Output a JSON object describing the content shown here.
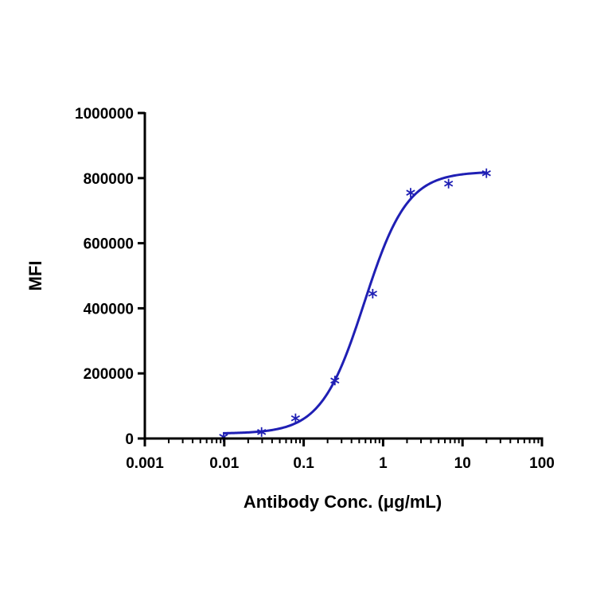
{
  "chart_data": {
    "type": "scatter",
    "title": "",
    "xlabel": "Antibody Conc. (μg/mL)",
    "ylabel": "MFI",
    "x_scale": "log",
    "xlim": [
      0.001,
      100
    ],
    "ylim": [
      0,
      1000000
    ],
    "x_ticks": [
      {
        "value": 0.001,
        "label": "0.001"
      },
      {
        "value": 0.01,
        "label": "0.01"
      },
      {
        "value": 0.1,
        "label": "0.1"
      },
      {
        "value": 1,
        "label": "1"
      },
      {
        "value": 10,
        "label": "10"
      },
      {
        "value": 100,
        "label": "100"
      }
    ],
    "y_ticks": [
      {
        "value": 0,
        "label": "0"
      },
      {
        "value": 200000,
        "label": "200000"
      },
      {
        "value": 400000,
        "label": "400000"
      },
      {
        "value": 600000,
        "label": "600000"
      },
      {
        "value": 800000,
        "label": "800000"
      },
      {
        "value": 1000000,
        "label": "1000000"
      }
    ],
    "grid": false,
    "legend": "none",
    "color": "#1f1fb4",
    "marker": "asterisk",
    "series": [
      {
        "x": [
          0.0098,
          0.0295,
          0.079,
          0.247,
          0.74,
          2.22,
          6.67,
          20
        ],
        "y": [
          5000,
          20000,
          62000,
          178000,
          445000,
          755000,
          783000,
          815000
        ]
      }
    ],
    "fit_curve": {
      "model": "4PL",
      "bottom": 15000,
      "top": 820000,
      "ec50": 0.58,
      "hill": 1.6,
      "x_range": [
        0.0098,
        20
      ]
    }
  }
}
